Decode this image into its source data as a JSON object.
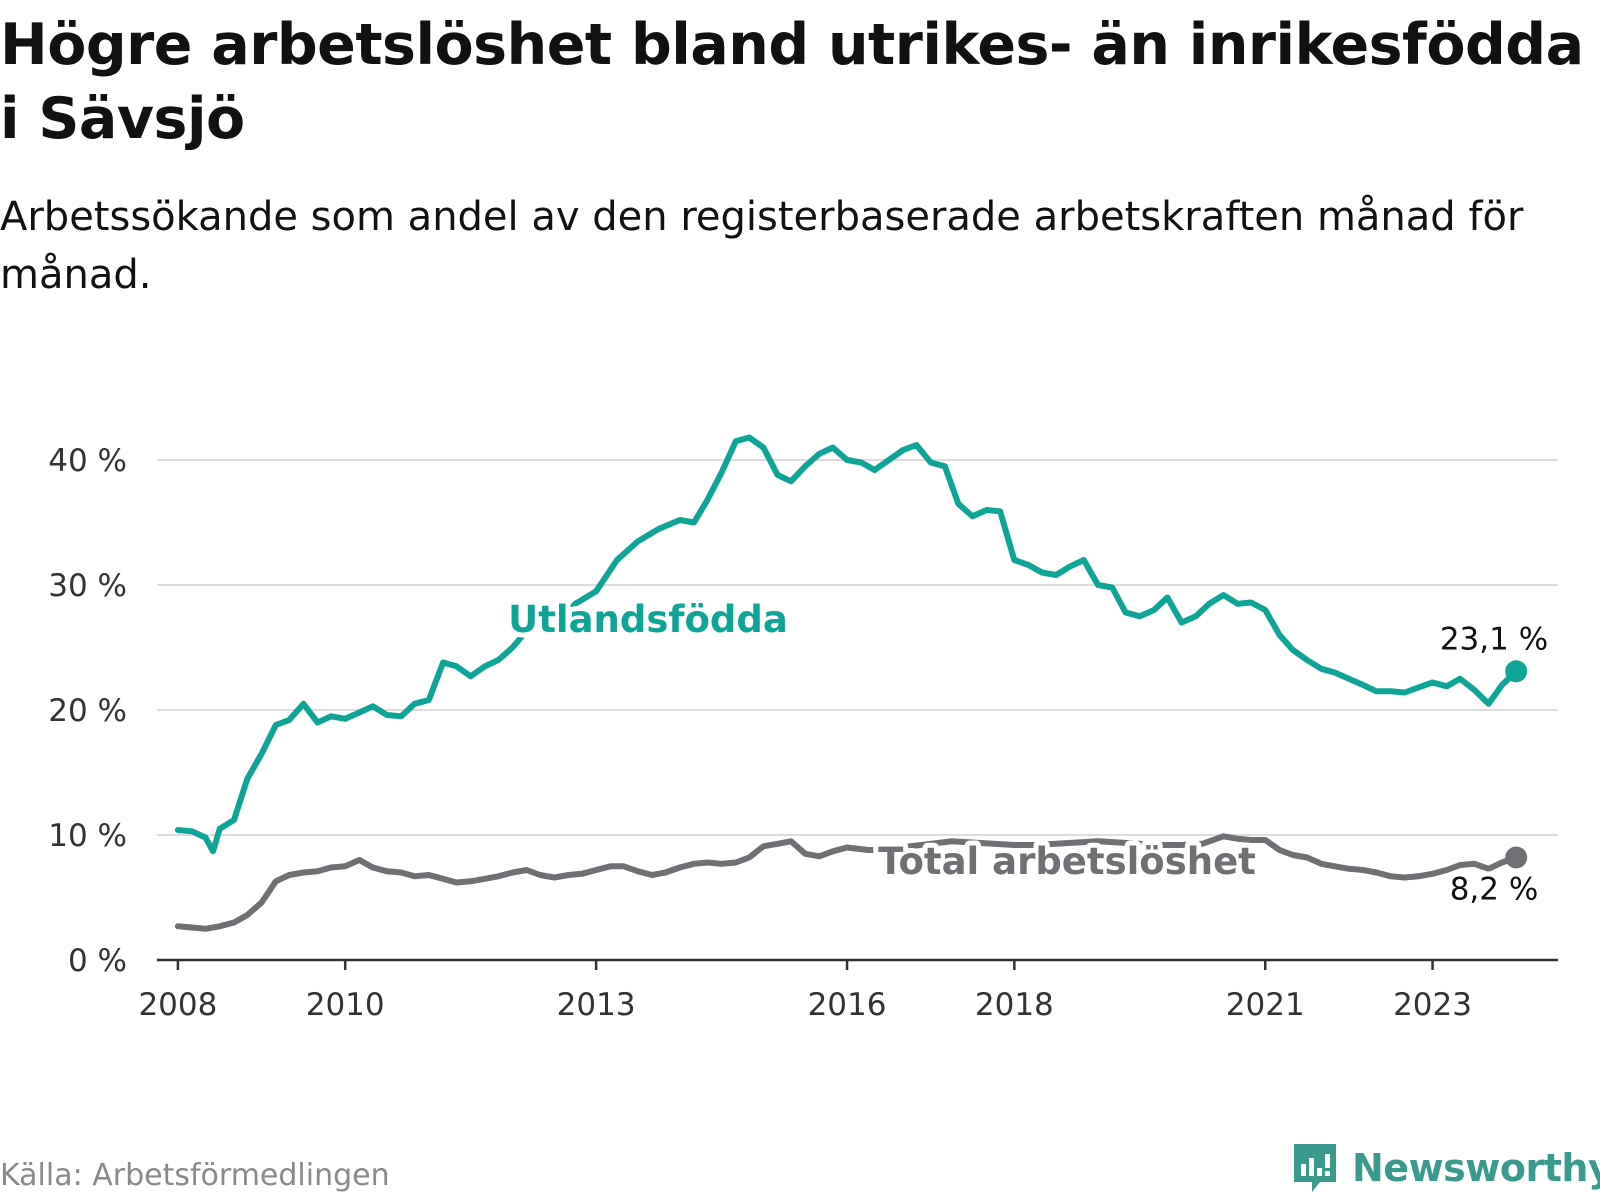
{
  "title": "Högre arbetslöshet bland utrikes- än inrikesfödda i Sävsjö",
  "subtitle": "Arbetssökande som andel av den registerbaserade arbetskraften månad för månad.",
  "source": "Källa: Arbetsförmedlingen",
  "brand": "Newsworthy",
  "colors": {
    "foreign": "#0fa596",
    "total": "#6f6f74",
    "grid": "#dddddd",
    "axis": "#333333",
    "brand": "#3a9a8e"
  },
  "chart_data": {
    "type": "line",
    "title": "Högre arbetslöshet bland utrikes- än inrikesfödda i Sävsjö",
    "xlabel": "",
    "ylabel": "",
    "xlim": [
      2007.75,
      2024.5
    ],
    "ylim": [
      0,
      40
    ],
    "x_ticks": [
      2008,
      2010,
      2013,
      2016,
      2018,
      2021,
      2023
    ],
    "x_tick_labels": [
      "2008",
      "2010",
      "2013",
      "2016",
      "2018",
      "2021",
      "2023"
    ],
    "y_ticks": [
      0,
      10,
      20,
      30,
      40
    ],
    "y_tick_labels": [
      "0 %",
      "10 %",
      "20 %",
      "30 %",
      "40 %"
    ],
    "grid": true,
    "series": [
      {
        "name": "Utlandsfödda",
        "label": "Utlandsfödda",
        "end_label": "23,1 %",
        "x": [
          2008.0,
          2008.17,
          2008.33,
          2008.42,
          2008.5,
          2008.67,
          2008.83,
          2009.0,
          2009.17,
          2009.33,
          2009.5,
          2009.67,
          2009.83,
          2010.0,
          2010.17,
          2010.33,
          2010.5,
          2010.67,
          2010.83,
          2011.0,
          2011.17,
          2011.33,
          2011.5,
          2011.67,
          2011.83,
          2012.0,
          2012.25,
          2012.5,
          2012.75,
          2013.0,
          2013.25,
          2013.5,
          2013.75,
          2014.0,
          2014.17,
          2014.33,
          2014.5,
          2014.67,
          2014.83,
          2015.0,
          2015.17,
          2015.33,
          2015.5,
          2015.67,
          2015.83,
          2016.0,
          2016.17,
          2016.33,
          2016.5,
          2016.67,
          2016.83,
          2017.0,
          2017.17,
          2017.33,
          2017.5,
          2017.67,
          2017.83,
          2018.0,
          2018.17,
          2018.33,
          2018.5,
          2018.67,
          2018.83,
          2019.0,
          2019.17,
          2019.33,
          2019.5,
          2019.67,
          2019.83,
          2020.0,
          2020.17,
          2020.33,
          2020.5,
          2020.67,
          2020.83,
          2021.0,
          2021.17,
          2021.33,
          2021.5,
          2021.67,
          2021.83,
          2022.0,
          2022.17,
          2022.33,
          2022.5,
          2022.67,
          2022.83,
          2023.0,
          2023.17,
          2023.33,
          2023.5,
          2023.67,
          2023.83,
          2024.0
        ],
        "values": [
          10.4,
          10.3,
          9.8,
          8.7,
          10.5,
          11.2,
          14.5,
          16.5,
          18.8,
          19.2,
          20.5,
          19.0,
          19.5,
          19.3,
          19.8,
          20.3,
          19.6,
          19.5,
          20.5,
          20.8,
          23.8,
          23.5,
          22.7,
          23.5,
          24.0,
          25.0,
          27.0,
          26.5,
          28.5,
          29.5,
          32.0,
          33.5,
          34.5,
          35.2,
          35.0,
          36.8,
          39.0,
          41.5,
          41.8,
          41.0,
          38.8,
          38.3,
          39.5,
          40.5,
          41.0,
          40.0,
          39.8,
          39.2,
          40.0,
          40.8,
          41.2,
          39.8,
          39.5,
          36.5,
          35.5,
          36.0,
          35.9,
          32.0,
          31.6,
          31.0,
          30.8,
          31.5,
          32.0,
          30.0,
          29.8,
          27.8,
          27.5,
          28.0,
          29.0,
          27.0,
          27.5,
          28.5,
          29.2,
          28.5,
          28.6,
          28.0,
          26.0,
          24.8,
          24.0,
          23.3,
          23.0,
          22.5,
          22.0,
          21.5,
          21.5,
          21.4,
          21.8,
          22.2,
          21.9,
          22.5,
          21.6,
          20.5,
          22.0,
          23.1
        ]
      },
      {
        "name": "Total arbetslöshet",
        "label": "Total arbetslöshet",
        "end_label": "8,2 %",
        "x": [
          2008.0,
          2008.17,
          2008.33,
          2008.5,
          2008.67,
          2008.83,
          2009.0,
          2009.17,
          2009.33,
          2009.5,
          2009.67,
          2009.83,
          2010.0,
          2010.17,
          2010.33,
          2010.5,
          2010.67,
          2010.83,
          2011.0,
          2011.17,
          2011.33,
          2011.5,
          2011.67,
          2011.83,
          2012.0,
          2012.17,
          2012.33,
          2012.5,
          2012.67,
          2012.83,
          2013.0,
          2013.17,
          2013.33,
          2013.5,
          2013.67,
          2013.83,
          2014.0,
          2014.17,
          2014.33,
          2014.5,
          2014.67,
          2014.83,
          2015.0,
          2015.17,
          2015.33,
          2015.5,
          2015.67,
          2015.83,
          2016.0,
          2016.25,
          2016.5,
          2016.75,
          2017.0,
          2017.25,
          2017.5,
          2017.75,
          2018.0,
          2018.25,
          2018.5,
          2018.75,
          2019.0,
          2019.25,
          2019.5,
          2019.75,
          2020.0,
          2020.25,
          2020.5,
          2020.67,
          2020.83,
          2021.0,
          2021.17,
          2021.33,
          2021.5,
          2021.67,
          2021.83,
          2022.0,
          2022.17,
          2022.33,
          2022.5,
          2022.67,
          2022.83,
          2023.0,
          2023.17,
          2023.33,
          2023.5,
          2023.67,
          2023.83,
          2024.0
        ],
        "values": [
          2.7,
          2.6,
          2.5,
          2.7,
          3.0,
          3.6,
          4.6,
          6.3,
          6.8,
          7.0,
          7.1,
          7.4,
          7.5,
          8.0,
          7.4,
          7.1,
          7.0,
          6.7,
          6.8,
          6.5,
          6.2,
          6.3,
          6.5,
          6.7,
          7.0,
          7.2,
          6.8,
          6.6,
          6.8,
          6.9,
          7.2,
          7.5,
          7.5,
          7.1,
          6.8,
          7.0,
          7.4,
          7.7,
          7.8,
          7.7,
          7.8,
          8.2,
          9.1,
          9.3,
          9.5,
          8.5,
          8.3,
          8.7,
          9.0,
          8.8,
          8.8,
          9.1,
          9.3,
          9.5,
          9.4,
          9.3,
          9.2,
          9.2,
          9.3,
          9.4,
          9.5,
          9.4,
          9.3,
          9.2,
          9.2,
          9.3,
          9.9,
          9.7,
          9.6,
          9.6,
          8.8,
          8.4,
          8.2,
          7.7,
          7.5,
          7.3,
          7.2,
          7.0,
          6.7,
          6.6,
          6.7,
          6.9,
          7.2,
          7.6,
          7.7,
          7.3,
          7.8,
          8.2
        ]
      }
    ]
  }
}
